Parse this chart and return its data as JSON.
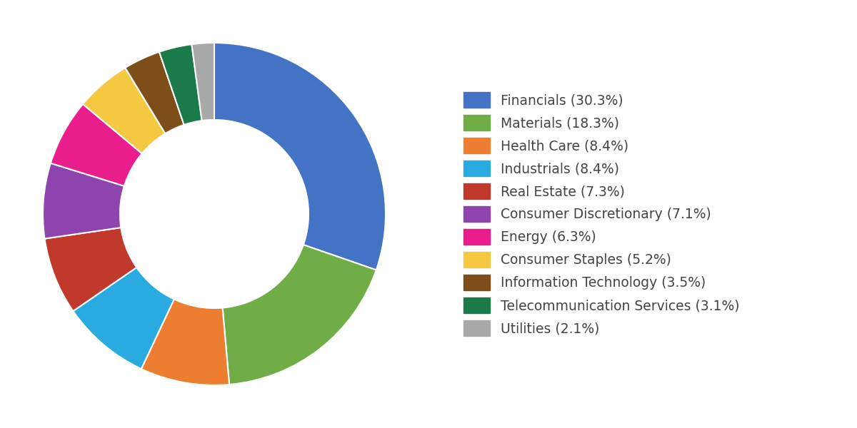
{
  "sectors": [
    {
      "label": "Financials (30.3%)",
      "value": 30.3,
      "color": "#4472C4"
    },
    {
      "label": "Materials (18.3%)",
      "value": 18.3,
      "color": "#70AD47"
    },
    {
      "label": "Health Care (8.4%)",
      "value": 8.4,
      "color": "#ED7D31"
    },
    {
      "label": "Industrials (8.4%)",
      "value": 8.4,
      "color": "#29ABE2"
    },
    {
      "label": "Real Estate (7.3%)",
      "value": 7.3,
      "color": "#C0392B"
    },
    {
      "label": "Consumer Discretionary (7.1%)",
      "value": 7.1,
      "color": "#8E44AD"
    },
    {
      "label": "Energy (6.3%)",
      "value": 6.3,
      "color": "#E91E8C"
    },
    {
      "label": "Consumer Staples (5.2%)",
      "value": 5.2,
      "color": "#F5C842"
    },
    {
      "label": "Information Technology (3.5%)",
      "value": 3.5,
      "color": "#7D4E1A"
    },
    {
      "label": "Telecommunication Services (3.1%)",
      "value": 3.1,
      "color": "#1A7A4A"
    },
    {
      "label": "Utilities (2.1%)",
      "value": 2.1,
      "color": "#A9A9A9"
    }
  ],
  "background_color": "#FFFFFF",
  "wedge_edge_color": "#FFFFFF",
  "wedge_linewidth": 1.5,
  "donut_width": 0.45,
  "legend_fontsize": 13.5,
  "legend_text_color": "#444444"
}
